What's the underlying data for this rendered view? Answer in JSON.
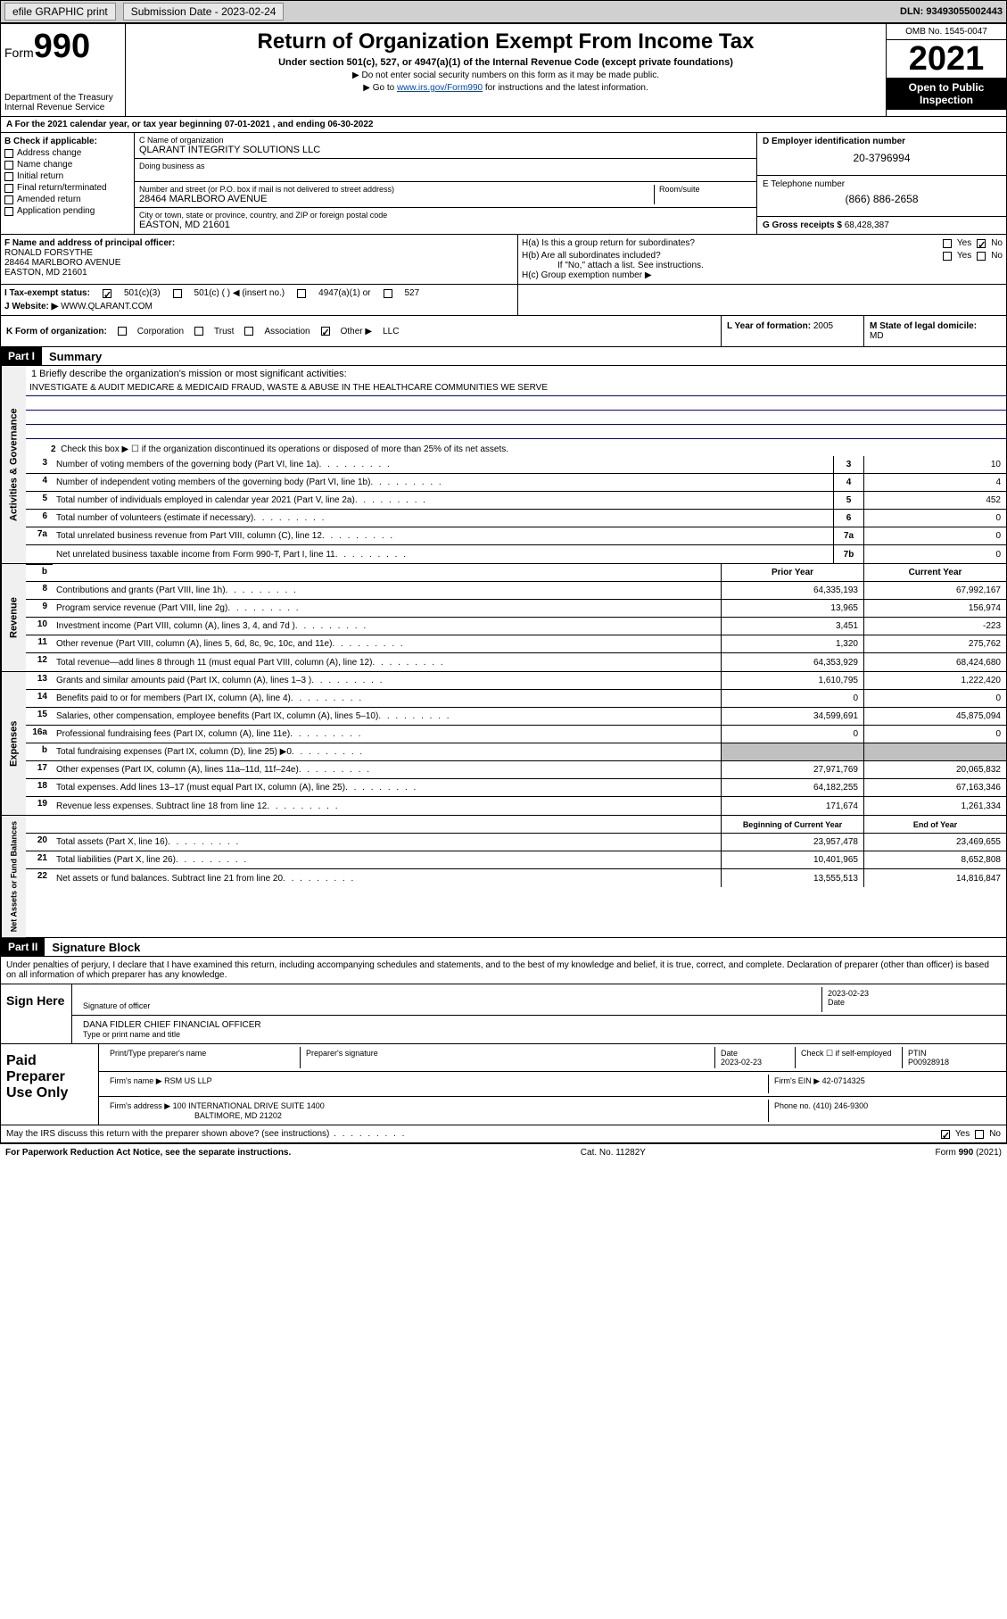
{
  "topbar": {
    "efile": "efile GRAPHIC print",
    "submission_label": "Submission Date - 2023-02-24",
    "dln": "DLN: 93493055002443"
  },
  "header": {
    "form_label": "Form",
    "form_number": "990",
    "title": "Return of Organization Exempt From Income Tax",
    "subtitle": "Under section 501(c), 527, or 4947(a)(1) of the Internal Revenue Code (except private foundations)",
    "warn1": "▶ Do not enter social security numbers on this form as it may be made public.",
    "warn2_pre": "▶ Go to ",
    "warn2_link": "www.irs.gov/Form990",
    "warn2_post": " for instructions and the latest information.",
    "dept": "Department of the Treasury",
    "irs": "Internal Revenue Service",
    "omb": "OMB No. 1545-0047",
    "year": "2021",
    "open": "Open to Public Inspection"
  },
  "lineA": {
    "prefix": "A For the 2021 calendar year, or tax year beginning ",
    "begin": "07-01-2021",
    "mid": " , and ending ",
    "end": "06-30-2022"
  },
  "colB": {
    "heading": "B Check if applicable:",
    "items": [
      "Address change",
      "Name change",
      "Initial return",
      "Final return/terminated",
      "Amended return",
      "Application pending"
    ]
  },
  "colC": {
    "name_lbl": "C Name of organization",
    "name": "QLARANT INTEGRITY SOLUTIONS LLC",
    "dba_lbl": "Doing business as",
    "dba": "",
    "addr_lbl": "Number and street (or P.O. box if mail is not delivered to street address)",
    "room_lbl": "Room/suite",
    "addr": "28464 MARLBORO AVENUE",
    "city_lbl": "City or town, state or province, country, and ZIP or foreign postal code",
    "city": "EASTON, MD  21601"
  },
  "colD": {
    "ein_lbl": "D Employer identification number",
    "ein": "20-3796994",
    "phone_lbl": "E Telephone number",
    "phone": "(866) 886-2658",
    "gross_lbl": "G Gross receipts $ ",
    "gross": "68,428,387"
  },
  "rowF": {
    "lbl": "F Name and address of principal officer:",
    "name": "RONALD FORSYTHE",
    "addr1": "28464 MARLBORO AVENUE",
    "addr2": "EASTON, MD  21601"
  },
  "rowH": {
    "ha": "H(a)  Is this a group return for subordinates?",
    "hb": "H(b)  Are all subordinates included?",
    "hb_note": "If \"No,\" attach a list. See instructions.",
    "hc": "H(c)  Group exemption number ▶",
    "yes": "Yes",
    "no": "No"
  },
  "rowI": {
    "lbl": "I   Tax-exempt status:",
    "opts": [
      "501(c)(3)",
      "501(c) (  ) ◀ (insert no.)",
      "4947(a)(1) or",
      "527"
    ]
  },
  "rowJ": {
    "lbl": "J   Website: ▶",
    "val": "WWW.QLARANT.COM"
  },
  "rowK": {
    "lbl": "K Form of organization:",
    "opts": [
      "Corporation",
      "Trust",
      "Association",
      "Other ▶"
    ],
    "other": "LLC"
  },
  "rowL": {
    "lbl": "L Year of formation: ",
    "val": "2005"
  },
  "rowM": {
    "lbl": "M State of legal domicile:",
    "val": "MD"
  },
  "part1": {
    "tag": "Part I",
    "title": "Summary"
  },
  "part2": {
    "tag": "Part II",
    "title": "Signature Block"
  },
  "mission": {
    "prompt": "1   Briefly describe the organization's mission or most significant activities:",
    "text": "INVESTIGATE & AUDIT MEDICARE & MEDICAID FRAUD, WASTE & ABUSE IN THE HEALTHCARE COMMUNITIES WE SERVE"
  },
  "line2": "Check this box ▶ ☐  if the organization discontinued its operations or disposed of more than 25% of its net assets.",
  "governance_rows": [
    {
      "n": "3",
      "t": "Number of voting members of the governing body (Part VI, line 1a)",
      "b": "3",
      "v": "10"
    },
    {
      "n": "4",
      "t": "Number of independent voting members of the governing body (Part VI, line 1b)",
      "b": "4",
      "v": "4"
    },
    {
      "n": "5",
      "t": "Total number of individuals employed in calendar year 2021 (Part V, line 2a)",
      "b": "5",
      "v": "452"
    },
    {
      "n": "6",
      "t": "Total number of volunteers (estimate if necessary)",
      "b": "6",
      "v": "0"
    },
    {
      "n": "7a",
      "t": "Total unrelated business revenue from Part VIII, column (C), line 12",
      "b": "7a",
      "v": "0"
    },
    {
      "n": "",
      "t": "Net unrelated business taxable income from Form 990-T, Part I, line 11",
      "b": "7b",
      "v": "0"
    }
  ],
  "col_headers": {
    "prior": "Prior Year",
    "current": "Current Year"
  },
  "revenue_rows": [
    {
      "n": "8",
      "t": "Contributions and grants (Part VIII, line 1h)",
      "p": "64,335,193",
      "c": "67,992,167"
    },
    {
      "n": "9",
      "t": "Program service revenue (Part VIII, line 2g)",
      "p": "13,965",
      "c": "156,974"
    },
    {
      "n": "10",
      "t": "Investment income (Part VIII, column (A), lines 3, 4, and 7d )",
      "p": "3,451",
      "c": "-223"
    },
    {
      "n": "11",
      "t": "Other revenue (Part VIII, column (A), lines 5, 6d, 8c, 9c, 10c, and 11e)",
      "p": "1,320",
      "c": "275,762"
    },
    {
      "n": "12",
      "t": "Total revenue—add lines 8 through 11 (must equal Part VIII, column (A), line 12)",
      "p": "64,353,929",
      "c": "68,424,680"
    }
  ],
  "expense_rows": [
    {
      "n": "13",
      "t": "Grants and similar amounts paid (Part IX, column (A), lines 1–3 )",
      "p": "1,610,795",
      "c": "1,222,420"
    },
    {
      "n": "14",
      "t": "Benefits paid to or for members (Part IX, column (A), line 4)",
      "p": "0",
      "c": "0"
    },
    {
      "n": "15",
      "t": "Salaries, other compensation, employee benefits (Part IX, column (A), lines 5–10)",
      "p": "34,599,691",
      "c": "45,875,094"
    },
    {
      "n": "16a",
      "t": "Professional fundraising fees (Part IX, column (A), line 11e)",
      "p": "0",
      "c": "0"
    },
    {
      "n": "b",
      "t": "Total fundraising expenses (Part IX, column (D), line 25) ▶0",
      "p": "",
      "c": "",
      "shaded": true
    },
    {
      "n": "17",
      "t": "Other expenses (Part IX, column (A), lines 11a–11d, 11f–24e)",
      "p": "27,971,769",
      "c": "20,065,832"
    },
    {
      "n": "18",
      "t": "Total expenses. Add lines 13–17 (must equal Part IX, column (A), line 25)",
      "p": "64,182,255",
      "c": "67,163,346"
    },
    {
      "n": "19",
      "t": "Revenue less expenses. Subtract line 18 from line 12",
      "p": "171,674",
      "c": "1,261,334"
    }
  ],
  "net_headers": {
    "begin": "Beginning of Current Year",
    "end": "End of Year"
  },
  "net_rows": [
    {
      "n": "20",
      "t": "Total assets (Part X, line 16)",
      "p": "23,957,478",
      "c": "23,469,655"
    },
    {
      "n": "21",
      "t": "Total liabilities (Part X, line 26)",
      "p": "10,401,965",
      "c": "8,652,808"
    },
    {
      "n": "22",
      "t": "Net assets or fund balances. Subtract line 21 from line 20",
      "p": "13,555,513",
      "c": "14,816,847"
    }
  ],
  "vtabs": {
    "gov": "Activities & Governance",
    "rev": "Revenue",
    "exp": "Expenses",
    "net": "Net Assets or Fund Balances"
  },
  "sig": {
    "decl": "Under penalties of perjury, I declare that I have examined this return, including accompanying schedules and statements, and to the best of my knowledge and belief, it is true, correct, and complete. Declaration of preparer (other than officer) is based on all information of which preparer has any knowledge.",
    "sign_here": "Sign Here",
    "sig_officer": "Signature of officer",
    "date": "Date",
    "sig_date": "2023-02-23",
    "officer_name": "DANA FIDLER  CHIEF FINANCIAL OFFICER",
    "type_name": "Type or print name and title",
    "paid": "Paid Preparer Use Only",
    "prep_name_lbl": "Print/Type preparer's name",
    "prep_sig_lbl": "Preparer's signature",
    "prep_date_lbl": "Date",
    "prep_date": "2023-02-23",
    "check_self": "Check ☐ if self-employed",
    "ptin_lbl": "PTIN",
    "ptin": "P00928918",
    "firm_name_lbl": "Firm's name    ▶",
    "firm_name": "RSM US LLP",
    "firm_ein_lbl": "Firm's EIN ▶",
    "firm_ein": "42-0714325",
    "firm_addr_lbl": "Firm's address ▶",
    "firm_addr1": "100 INTERNATIONAL DRIVE SUITE 1400",
    "firm_addr2": "BALTIMORE, MD  21202",
    "firm_phone_lbl": "Phone no.",
    "firm_phone": "(410) 246-9300",
    "may_irs": "May the IRS discuss this return with the preparer shown above? (see instructions)"
  },
  "footer": {
    "pra": "For Paperwork Reduction Act Notice, see the separate instructions.",
    "cat": "Cat. No. 11282Y",
    "form": "Form 990 (2021)"
  }
}
